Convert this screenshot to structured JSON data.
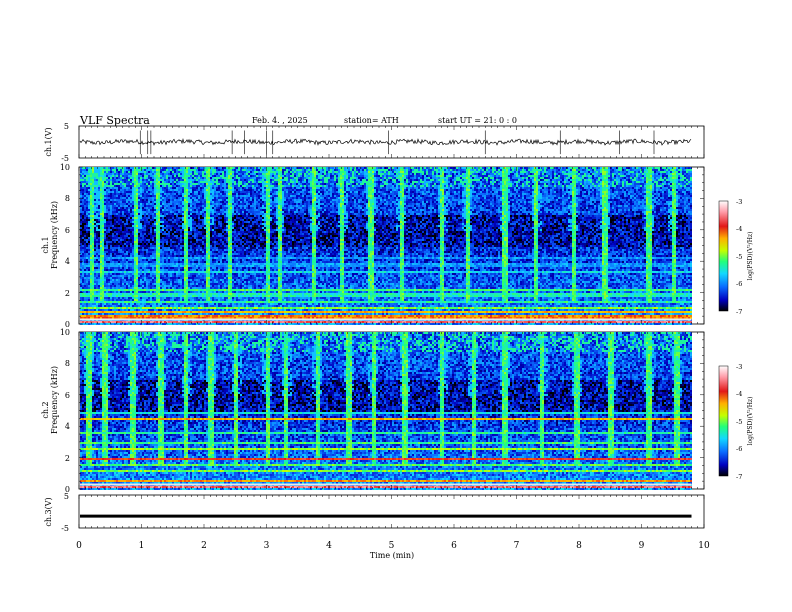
{
  "header": {
    "title": "VLF  Spectra",
    "date": "Feb. 4.  , 2025",
    "station": "station= ATH",
    "start_ut": "start  UT  =    21: 0   : 0"
  },
  "panels": {
    "ch1_wave": {
      "ylabel": "ch.1(V)",
      "ticks": [
        "5",
        "-5"
      ]
    },
    "ch1_spec": {
      "ylabel_top": "ch.1",
      "ylabel_bottom": "Frequency  (kHz)",
      "ticks": [
        "10",
        "8",
        "6",
        "4",
        "2",
        "0"
      ]
    },
    "ch2_spec": {
      "ylabel_top": "ch.2",
      "ylabel_bottom": "Frequency  (kHz)",
      "ticks": [
        "10",
        "8",
        "6",
        "4",
        "2",
        "0"
      ]
    },
    "ch3_wave": {
      "ylabel": "ch.3(V)",
      "ticks": [
        "5",
        "-5"
      ]
    }
  },
  "colorbar": {
    "label": "log(PSD)(V²/Hz)",
    "ticks": [
      "-3",
      "-4",
      "-5",
      "-6",
      "-7"
    ],
    "colors": [
      "#000000",
      "#0000c0",
      "#0a6cff",
      "#12d8ff",
      "#22ff7a",
      "#c4ff00",
      "#ffb000",
      "#e21818",
      "#ff9ca8",
      "#ffffff"
    ]
  },
  "xaxis": {
    "label": "Time  (min)",
    "ticks": [
      "0",
      "1",
      "2",
      "3",
      "4",
      "5",
      "6",
      "7",
      "8",
      "9",
      "10"
    ]
  },
  "chart_data": {
    "type": "heatmap",
    "title": "VLF  Spectra",
    "xlabel": "Time  (min)",
    "xlim": [
      0,
      10
    ],
    "data_end_min": 9.8,
    "channels": [
      {
        "name": "ch.1",
        "kind": "waveform",
        "ylim": [
          -5,
          5
        ],
        "baseline_v": 0,
        "spikes_min": [
          0.98,
          1.1,
          1.15,
          2.45,
          2.65,
          3.0,
          3.1,
          4.95,
          6.5,
          7.7,
          8.65,
          9.2
        ]
      },
      {
        "name": "ch.1",
        "kind": "spectrogram",
        "ylim_khz": [
          0,
          10
        ],
        "zlim_log_psd": [
          -7,
          -3
        ],
        "bands": [
          {
            "khz": 0.2,
            "level": -3.6
          },
          {
            "khz": 0.5,
            "level": -4.2
          },
          {
            "khz": 0.8,
            "level": -4.4
          },
          {
            "khz": 1.1,
            "level": -5.0
          },
          {
            "khz": 1.5,
            "level": -5.3
          },
          {
            "khz": 1.9,
            "level": -5.4
          },
          {
            "khz": 2.2,
            "level": -5.2
          },
          {
            "khz": 3.4,
            "level": -5.6
          },
          {
            "khz": 3.8,
            "level": -5.9
          },
          {
            "khz": 4.3,
            "level": -5.9
          }
        ],
        "bursts_min": [
          0.2,
          0.35,
          0.9,
          1.25,
          1.7,
          2.05,
          2.4,
          3.0,
          3.2,
          3.75,
          4.2,
          4.65,
          5.15,
          5.8,
          6.2,
          6.8,
          7.3,
          7.9,
          8.4,
          9.1,
          9.5
        ]
      },
      {
        "name": "ch.2",
        "kind": "spectrogram",
        "ylim_khz": [
          0,
          10
        ],
        "zlim_log_psd": [
          -7,
          -3
        ],
        "bands": [
          {
            "khz": 0.2,
            "level": -3.6
          },
          {
            "khz": 0.6,
            "level": -4.3
          },
          {
            "khz": 1.2,
            "level": -5.0
          },
          {
            "khz": 1.6,
            "level": -5.1
          },
          {
            "khz": 2.0,
            "level": -3.9
          },
          {
            "khz": 2.6,
            "level": -4.9
          },
          {
            "khz": 3.0,
            "level": -5.2
          },
          {
            "khz": 3.6,
            "level": -5.3
          },
          {
            "khz": 4.5,
            "level": -4.4
          },
          {
            "khz": 4.9,
            "level": -5.5
          }
        ],
        "bursts_min": [
          0.15,
          0.4,
          0.85,
          1.3,
          1.7,
          2.1,
          2.5,
          3.0,
          3.3,
          3.8,
          4.3,
          4.7,
          5.2,
          5.8,
          6.3,
          6.8,
          7.4,
          7.95,
          8.5,
          9.1,
          9.55
        ]
      },
      {
        "name": "ch.3",
        "kind": "waveform",
        "ylim": [
          -5,
          5
        ],
        "baseline_v": -1.4
      }
    ]
  }
}
